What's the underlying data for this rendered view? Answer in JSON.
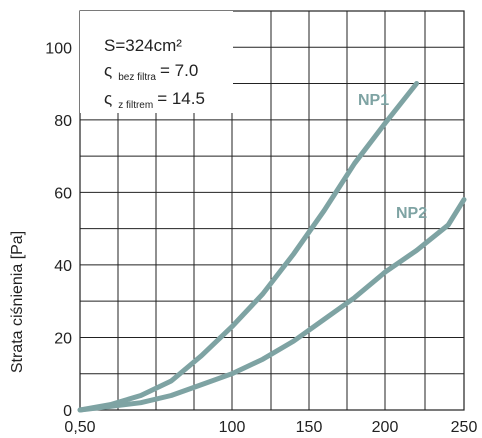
{
  "chart_data": {
    "type": "line",
    "ylabel": "Strata ciśnienia [Pa]",
    "xlabel": "",
    "x_ticks": [
      "0,50",
      "100",
      "150",
      "200",
      "250"
    ],
    "y_ticks": [
      "0",
      "20",
      "40",
      "60",
      "80",
      "100"
    ],
    "xlim": [
      0,
      250
    ],
    "ylim": [
      0,
      110
    ],
    "grid": true,
    "info_box": {
      "area": "S=324cm²",
      "zeta1": {
        "symbol": "ς",
        "sub": "bez filtra",
        "value": "= 7.0"
      },
      "zeta2": {
        "symbol": "ς",
        "sub": "z filtrem",
        "value": "= 14.5"
      }
    },
    "series": [
      {
        "name": "NP1",
        "color": "#7ea3a3",
        "x": [
          0,
          20,
          40,
          60,
          80,
          100,
          120,
          140,
          160,
          180,
          200,
          220
        ],
        "y": [
          0,
          1.5,
          4,
          8,
          15,
          23,
          32,
          43,
          55,
          68,
          79,
          90
        ]
      },
      {
        "name": "NP2",
        "color": "#7ea3a3",
        "x": [
          0,
          20,
          40,
          60,
          80,
          100,
          120,
          140,
          160,
          180,
          200,
          220,
          240,
          250
        ],
        "y": [
          0,
          1,
          2,
          4,
          7,
          10,
          14,
          19,
          25,
          31,
          38,
          44,
          51,
          58
        ]
      }
    ]
  }
}
